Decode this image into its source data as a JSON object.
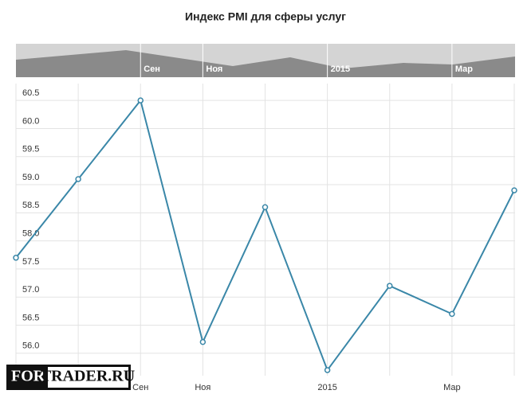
{
  "chart_data": {
    "type": "line",
    "title": "Индекс PMI для сферы услуг",
    "categories": [
      null,
      null,
      "Сен",
      "Ноя",
      null,
      "2015",
      null,
      "Мар",
      null
    ],
    "series": [
      {
        "name": "PMI",
        "color": "#3a87a8",
        "values": [
          57.7,
          59.1,
          60.5,
          56.2,
          58.6,
          55.7,
          57.2,
          56.7,
          58.9
        ]
      }
    ],
    "ylim": [
      55.6,
      60.8
    ],
    "yticks": [
      {
        "value": 56,
        "label": "56.0"
      },
      {
        "value": 56.5,
        "label": "56.5"
      },
      {
        "value": 57,
        "label": "57.0"
      },
      {
        "value": 57.5,
        "label": "57.5"
      },
      {
        "value": 58,
        "label": "58.0"
      },
      {
        "value": 58.5,
        "label": "58.5"
      },
      {
        "value": 59,
        "label": "59.0"
      },
      {
        "value": 59.5,
        "label": "59.5"
      },
      {
        "value": 60,
        "label": "60.0"
      },
      {
        "value": 60.5,
        "label": "60.5"
      }
    ],
    "grid": true
  },
  "watermark": {
    "left": "FOR",
    "right": "TRADER.RU"
  }
}
